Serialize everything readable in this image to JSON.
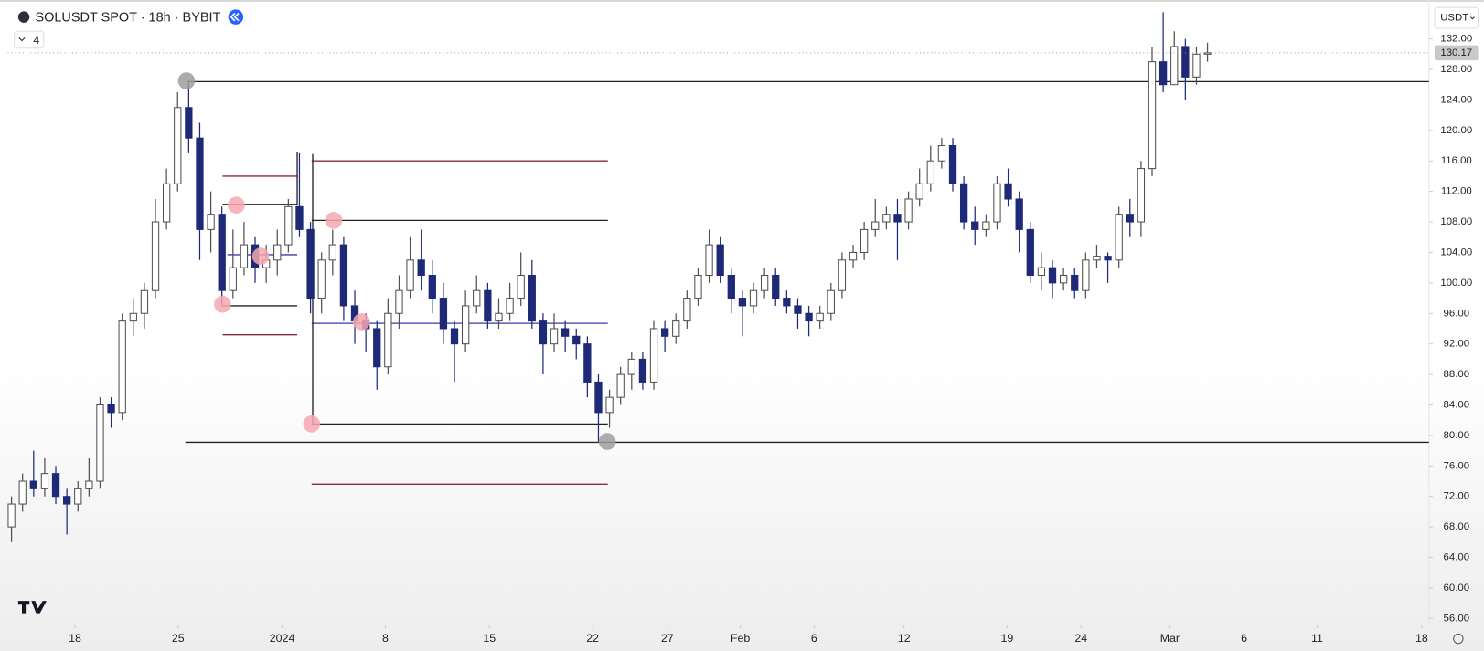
{
  "header": {
    "symbol": "SOLUSDT SPOT · 18h · BYBIT",
    "indicator_count": 4,
    "currency": "USDT"
  },
  "chart_data": {
    "type": "candlestick",
    "up_color": "#ffffff",
    "down_color": "#1e2a78",
    "outline_color": "#505050",
    "open": [
      68,
      71,
      74,
      73,
      75,
      72,
      71,
      73,
      74,
      84,
      83,
      95,
      96,
      99,
      108,
      113,
      123,
      119,
      107,
      109,
      99,
      102,
      105,
      102,
      103,
      105,
      110,
      107,
      98,
      103,
      105,
      97,
      95,
      94,
      89,
      96,
      99,
      103,
      101,
      98,
      94,
      92,
      97,
      99,
      95,
      96,
      98,
      101,
      95,
      92,
      94,
      93,
      92,
      87,
      83,
      85,
      88,
      90,
      87,
      94,
      93,
      95,
      98,
      101,
      105,
      101,
      98,
      97,
      99,
      101,
      98,
      97,
      96,
      95,
      96,
      99,
      103,
      104,
      107,
      108,
      109,
      108,
      111,
      113,
      116,
      118,
      113,
      108,
      107,
      108,
      113,
      111,
      107,
      101,
      102,
      100,
      101,
      99,
      103,
      103.5,
      103,
      109,
      108,
      115,
      129,
      126,
      131,
      127,
      130
    ],
    "high": [
      72,
      75,
      78,
      77,
      76,
      73,
      74,
      77,
      85,
      85,
      96,
      98,
      100,
      111,
      115,
      125,
      126.5,
      121,
      112,
      110,
      107,
      108,
      106,
      105,
      107,
      111,
      117,
      108,
      104,
      107,
      106,
      99,
      96,
      95,
      98,
      101,
      106,
      107,
      103,
      100,
      95,
      99,
      101,
      100,
      98,
      100,
      104,
      103,
      96,
      96,
      95,
      94,
      93,
      88,
      86,
      89,
      91,
      91,
      95,
      95,
      96,
      99,
      102,
      107,
      106,
      102,
      99,
      100,
      102,
      102,
      99,
      98,
      97,
      97,
      100,
      104,
      105,
      108,
      111,
      110,
      111,
      112,
      115,
      118,
      119,
      119,
      114,
      110,
      109,
      114,
      115,
      112,
      108,
      104,
      103,
      102,
      102,
      104,
      105,
      104,
      110,
      111,
      116,
      131,
      135.5,
      133,
      132,
      131,
      131.5
    ],
    "low": [
      66,
      70,
      72,
      72,
      71,
      67,
      70,
      72,
      73,
      81,
      82,
      93,
      94,
      98,
      107,
      112,
      117,
      103,
      104,
      97,
      98,
      101,
      100,
      100,
      101,
      104,
      106,
      96,
      96,
      101,
      95,
      92,
      91,
      86,
      88,
      94,
      98,
      99,
      96,
      92,
      87,
      91,
      96,
      94,
      94,
      95,
      97,
      94,
      88,
      91,
      91,
      90,
      85,
      79.2,
      81,
      84,
      86,
      86,
      86,
      91,
      92,
      94,
      97,
      100,
      100,
      96,
      93,
      96,
      98,
      97,
      96,
      94,
      93,
      94,
      95,
      98,
      102,
      103,
      106,
      107,
      103,
      107,
      110,
      112,
      115,
      112,
      107,
      105,
      106,
      107,
      110,
      104,
      100,
      99,
      98,
      99,
      98,
      98,
      102,
      100,
      102,
      106,
      106,
      114,
      125,
      126,
      124,
      126,
      129
    ],
    "close": [
      71,
      74,
      73,
      75,
      72,
      71,
      73,
      74,
      84,
      83,
      95,
      96,
      99,
      108,
      113,
      123,
      119,
      107,
      109,
      99,
      102,
      105,
      102,
      103,
      105,
      110,
      107,
      98,
      103,
      105,
      97,
      95,
      94,
      89,
      96,
      99,
      103,
      101,
      98,
      94,
      92,
      97,
      99,
      95,
      96,
      98,
      101,
      95,
      92,
      94,
      93,
      92,
      87,
      83,
      85,
      88,
      90,
      87,
      94,
      93,
      95,
      98,
      101,
      105,
      101,
      98,
      97,
      99,
      101,
      98,
      97,
      96,
      95,
      96,
      99,
      103,
      104,
      107,
      108,
      109,
      108,
      111,
      113,
      116,
      118,
      113,
      108,
      107,
      108,
      113,
      111,
      107,
      101,
      102,
      100,
      101,
      99,
      103,
      103.5,
      103,
      109,
      108,
      115,
      129,
      126,
      131,
      127,
      130,
      130.17
    ],
    "xlim": [
      -0.34,
      128
    ],
    "xticks": [
      {
        "value": 5.73,
        "label": "18"
      },
      {
        "value": 15.04,
        "label": "25"
      },
      {
        "value": 24.44,
        "label": "2024"
      },
      {
        "value": 33.76,
        "label": "8"
      },
      {
        "value": 43.16,
        "label": "15"
      },
      {
        "value": 52.48,
        "label": "22"
      },
      {
        "value": 59.23,
        "label": "27"
      },
      {
        "value": 65.81,
        "label": "Feb"
      },
      {
        "value": 72.48,
        "label": "6"
      },
      {
        "value": 80.6,
        "label": "12"
      },
      {
        "value": 89.9,
        "label": "19"
      },
      {
        "value": 96.58,
        "label": "24"
      },
      {
        "value": 104.6,
        "label": "Mar"
      },
      {
        "value": 111.3,
        "label": "6"
      },
      {
        "value": 117.9,
        "label": "11"
      },
      {
        "value": 127.35,
        "label": "18"
      }
    ],
    "ylim": [
      55.2,
      137.1
    ],
    "yticks": [
      {
        "value": 56,
        "label": "56.00"
      },
      {
        "value": 60,
        "label": "60.00"
      },
      {
        "value": 64,
        "label": "64.00"
      },
      {
        "value": 68,
        "label": "68.00"
      },
      {
        "value": 72,
        "label": "72.00"
      },
      {
        "value": 76,
        "label": "76.00"
      },
      {
        "value": 80,
        "label": "80.00"
      },
      {
        "value": 84,
        "label": "84.00"
      },
      {
        "value": 88,
        "label": "88.00"
      },
      {
        "value": 92,
        "label": "92.00"
      },
      {
        "value": 96,
        "label": "96.00"
      },
      {
        "value": 100,
        "label": "100.00"
      },
      {
        "value": 104,
        "label": "104.00"
      },
      {
        "value": 108,
        "label": "108.00"
      },
      {
        "value": 112,
        "label": "112.00"
      },
      {
        "value": 116,
        "label": "116.00"
      },
      {
        "value": 120,
        "label": "120.00"
      },
      {
        "value": 124,
        "label": "124.00"
      },
      {
        "value": 128,
        "label": "128.00"
      },
      {
        "value": 132,
        "label": "132.00"
      }
    ],
    "hlines": [
      {
        "color": "#222222",
        "y": 126.4,
        "x": [
          15.8,
          128
        ]
      },
      {
        "color": "#222222",
        "y": 79.1,
        "x": [
          15.7,
          128
        ]
      },
      {
        "color": "#8b2a3a",
        "y": 114.0,
        "x": [
          19.06,
          25.8
        ]
      },
      {
        "color": "#8b2a3a",
        "y": 93.2,
        "x": [
          19.06,
          25.8
        ]
      },
      {
        "color": "#222222",
        "y": 110.3,
        "x": [
          19.06,
          25.8
        ]
      },
      {
        "color": "#222222",
        "y": 97.0,
        "x": [
          19.06,
          25.8
        ]
      },
      {
        "color": "#3a3aa8",
        "y": 103.7,
        "x": [
          19.5,
          25.8
        ]
      },
      {
        "color": "#8b2a3a",
        "y": 116.0,
        "x": [
          27.1,
          53.85
        ]
      },
      {
        "color": "#8b2a3a",
        "y": 73.6,
        "x": [
          27.1,
          53.85
        ]
      },
      {
        "color": "#222222",
        "y": 108.2,
        "x": [
          27.1,
          53.85
        ]
      },
      {
        "color": "#222222",
        "y": 81.5,
        "x": [
          27.1,
          53.85
        ]
      },
      {
        "color": "#3a3aa8",
        "y": 94.7,
        "x": [
          27.1,
          53.85
        ]
      }
    ],
    "vlines": [
      {
        "color": "#222222",
        "x": 25.8,
        "y": [
          117.2,
          110.3
        ]
      },
      {
        "color": "#222222",
        "x": 27.2,
        "y": [
          116.9,
          81.5
        ]
      }
    ],
    "markers": [
      {
        "color": "#9e9e9e",
        "x": 15.8,
        "y": 126.5
      },
      {
        "color": "#9e9e9e",
        "x": 53.8,
        "y": 79.2
      },
      {
        "color": "#f4a7b0",
        "x": 20.3,
        "y": 110.2
      },
      {
        "color": "#f4a7b0",
        "x": 19.06,
        "y": 97.2
      },
      {
        "color": "#f4a7b0",
        "x": 22.5,
        "y": 103.5
      },
      {
        "color": "#f4a7b0",
        "x": 29.1,
        "y": 108.2
      },
      {
        "color": "#f4a7b0",
        "x": 31.6,
        "y": 94.9
      },
      {
        "color": "#f4a7b0",
        "x": 27.1,
        "y": 81.5
      }
    ]
  }
}
